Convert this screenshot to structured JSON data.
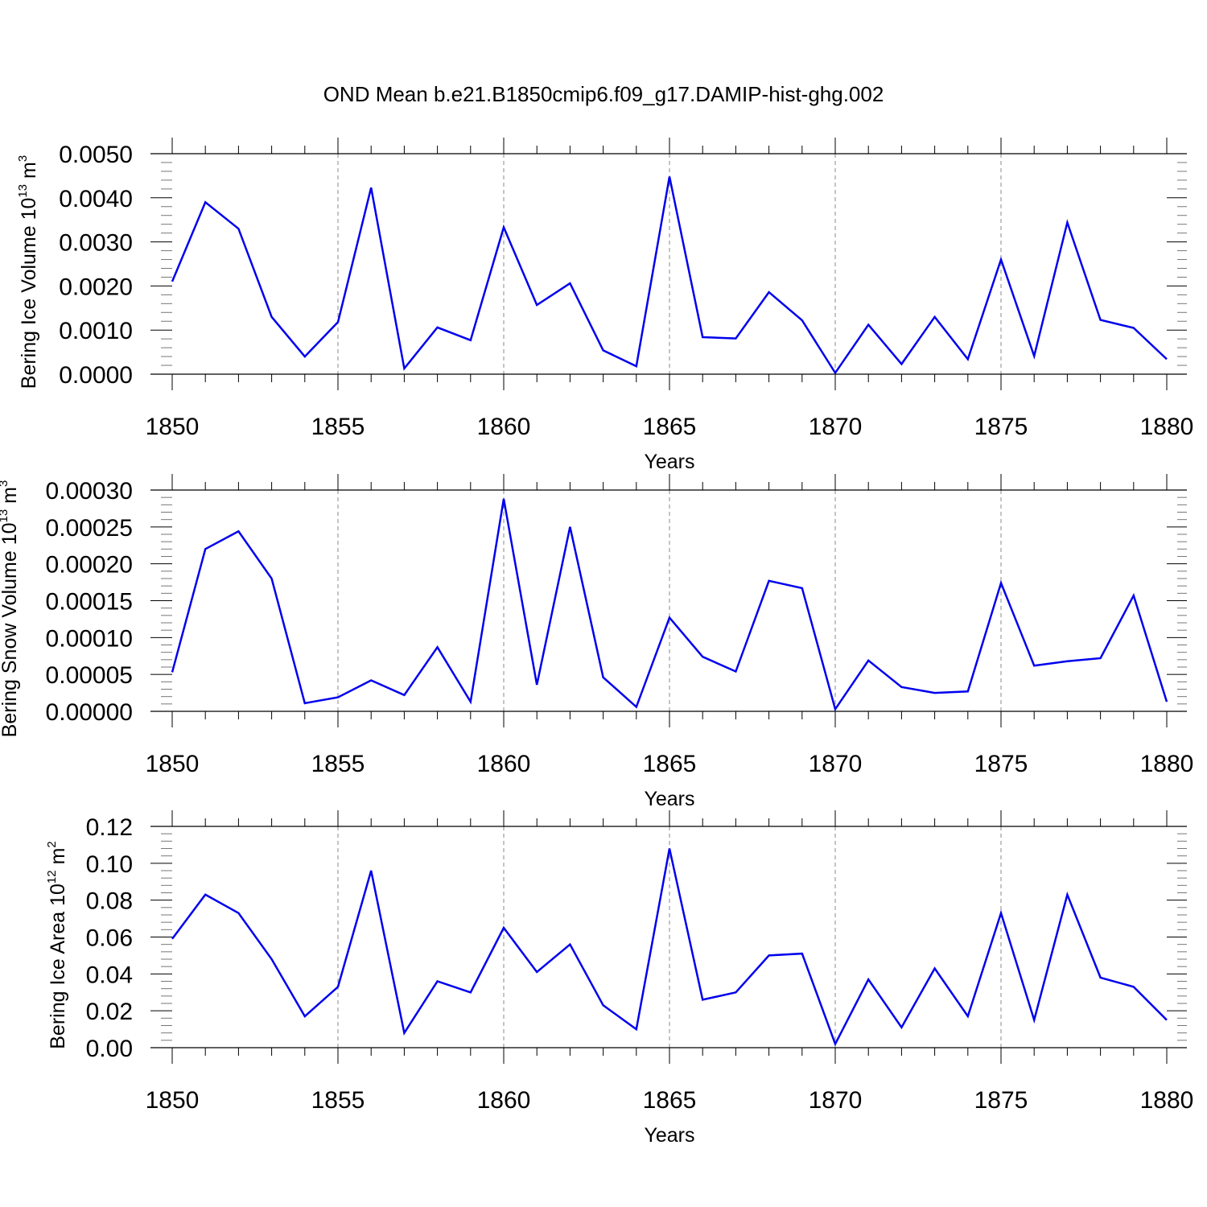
{
  "title": "OND Mean b.e21.B1850cmip6.f09_g17.DAMIP-hist-ghg.002",
  "colors": {
    "line": "#0000ee",
    "axis": "#000000",
    "grid": "#888888"
  },
  "chart_data": [
    {
      "type": "line",
      "title": "OND Mean b.e21.B1850cmip6.f09_g17.DAMIP-hist-ghg.002",
      "xlabel": "Years",
      "ylabel": {
        "main": "Bering Ice Volume 10",
        "exp": "13",
        "unit": " m",
        "unit_exp": "3"
      },
      "xlim": [
        1850,
        1880
      ],
      "ylim": [
        0,
        0.005
      ],
      "x_ticks": [
        "1850",
        "1855",
        "1860",
        "1865",
        "1870",
        "1875",
        "1880"
      ],
      "y_ticks": [
        "0.0000",
        "0.0010",
        "0.0020",
        "0.0030",
        "0.0040",
        "0.0050"
      ],
      "grid": "vertical dashed at major x ticks",
      "series": [
        {
          "name": "Bering Ice Volume",
          "x": [
            1850,
            1851,
            1852,
            1853,
            1854,
            1855,
            1856,
            1857,
            1858,
            1859,
            1860,
            1861,
            1862,
            1863,
            1864,
            1865,
            1866,
            1867,
            1868,
            1869,
            1870,
            1871,
            1872,
            1873,
            1874,
            1875,
            1876,
            1877,
            1878,
            1879,
            1880
          ],
          "values": [
            0.0021,
            0.0039,
            0.0033,
            0.0013,
            0.0004,
            0.00118,
            0.00423,
            0.00013,
            0.00106,
            0.00077,
            0.00333,
            0.00157,
            0.00206,
            0.00054,
            0.00018,
            0.00448,
            0.00084,
            0.00081,
            0.00186,
            0.00122,
            3e-05,
            0.00112,
            0.00023,
            0.0013,
            0.00034,
            0.0026,
            0.00041,
            0.00344,
            0.00123,
            0.00105,
            0.00034
          ]
        }
      ]
    },
    {
      "type": "line",
      "title": "",
      "xlabel": "Years",
      "ylabel": {
        "main": "Bering Snow Volume 10",
        "exp": "13",
        "unit": " m",
        "unit_exp": "3"
      },
      "xlim": [
        1850,
        1880
      ],
      "ylim": [
        0,
        0.0003
      ],
      "x_ticks": [
        "1850",
        "1855",
        "1860",
        "1865",
        "1870",
        "1875",
        "1880"
      ],
      "y_ticks": [
        "0.00000",
        "0.00005",
        "0.00010",
        "0.00015",
        "0.00020",
        "0.00025",
        "0.00030"
      ],
      "grid": "vertical dashed at major x ticks",
      "series": [
        {
          "name": "Bering Snow Volume",
          "x": [
            1850,
            1851,
            1852,
            1853,
            1854,
            1855,
            1856,
            1857,
            1858,
            1859,
            1860,
            1861,
            1862,
            1863,
            1864,
            1865,
            1866,
            1867,
            1868,
            1869,
            1870,
            1871,
            1872,
            1873,
            1874,
            1875,
            1876,
            1877,
            1878,
            1879,
            1880
          ],
          "values": [
            5.3e-05,
            0.00022,
            0.000244,
            0.00018,
            1.1e-05,
            1.9e-05,
            4.2e-05,
            2.2e-05,
            8.7e-05,
            1.3e-05,
            0.000288,
            3.6e-05,
            0.00025,
            4.6e-05,
            6e-06,
            0.000127,
            7.4e-05,
            5.4e-05,
            0.000177,
            0.000167,
            3e-06,
            6.9e-05,
            3.3e-05,
            2.5e-05,
            2.7e-05,
            0.000174,
            6.2e-05,
            6.8e-05,
            7.2e-05,
            0.000157,
            1.3e-05
          ]
        }
      ]
    },
    {
      "type": "line",
      "title": "",
      "xlabel": "Years",
      "ylabel": {
        "main": "Bering Ice Area 10",
        "exp": "12",
        "unit": " m",
        "unit_exp": "2"
      },
      "xlim": [
        1850,
        1880
      ],
      "ylim": [
        0,
        0.12
      ],
      "x_ticks": [
        "1850",
        "1855",
        "1860",
        "1865",
        "1870",
        "1875",
        "1880"
      ],
      "y_ticks": [
        "0.00",
        "0.02",
        "0.04",
        "0.06",
        "0.08",
        "0.10",
        "0.12"
      ],
      "grid": "vertical dashed at major x ticks",
      "series": [
        {
          "name": "Bering Ice Area",
          "x": [
            1850,
            1851,
            1852,
            1853,
            1854,
            1855,
            1856,
            1857,
            1858,
            1859,
            1860,
            1861,
            1862,
            1863,
            1864,
            1865,
            1866,
            1867,
            1868,
            1869,
            1870,
            1871,
            1872,
            1873,
            1874,
            1875,
            1876,
            1877,
            1878,
            1879,
            1880
          ],
          "values": [
            0.059,
            0.083,
            0.073,
            0.048,
            0.017,
            0.033,
            0.096,
            0.008,
            0.036,
            0.03,
            0.065,
            0.041,
            0.056,
            0.023,
            0.01,
            0.108,
            0.026,
            0.03,
            0.05,
            0.051,
            0.002,
            0.037,
            0.011,
            0.043,
            0.017,
            0.073,
            0.015,
            0.083,
            0.038,
            0.033,
            0.015
          ]
        }
      ]
    }
  ]
}
